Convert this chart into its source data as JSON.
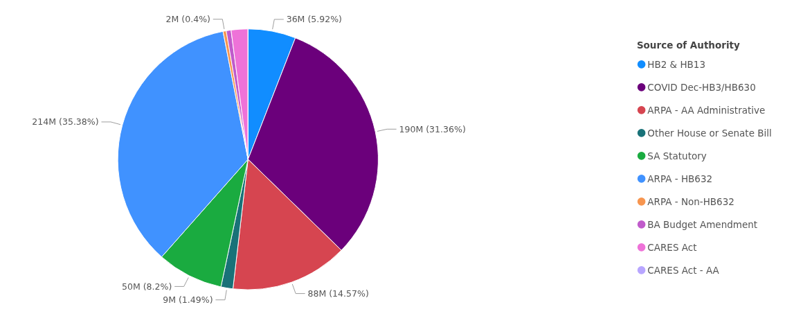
{
  "chart_data": {
    "type": "pie",
    "legend_title": "Source of Authority",
    "legend": "right",
    "categories": [
      "HB2 & HB13",
      "COVID Dec-HB3/HB630",
      "ARPA - AA Administrative",
      "Other House or Senate Bill",
      "SA Statutory",
      "ARPA - HB632",
      "ARPA - Non-HB632",
      "BA Budget Amendment",
      "CARES Act",
      "CARES Act - AA"
    ],
    "values": [
      5.92,
      31.36,
      14.57,
      1.49,
      8.2,
      35.38,
      0.4,
      0.6,
      2.08,
      0
    ],
    "value_labels": [
      "36M (5.92%)",
      "190M (31.36%)",
      "88M (14.57%)",
      "9M (1.49%)",
      "50M (8.2%)",
      "214M (35.38%)",
      "2M (0.4%)",
      null,
      null,
      null
    ],
    "colors": [
      "#118dff",
      "#6b007b",
      "#d64550",
      "#197278",
      "#1aab40",
      "#4092ff",
      "#f7954f",
      "#c05bcb",
      "#ee72d8",
      "#b8a6ff"
    ]
  }
}
